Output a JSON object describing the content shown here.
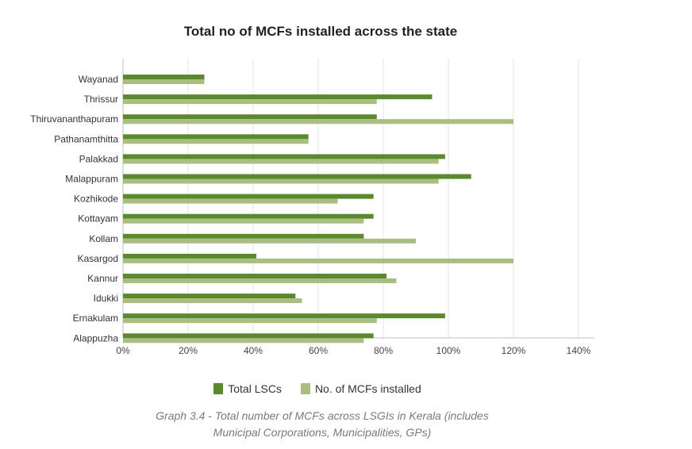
{
  "chart_data": {
    "type": "bar",
    "orientation": "horizontal",
    "title": "Total no of MCFs installed across the state",
    "categories": [
      "Wayanad",
      "Thrissur",
      "Thiruvananthapuram",
      "Pathanamthitta",
      "Palakkad",
      "Malappuram",
      "Kozhikode",
      "Kottayam",
      "Kollam",
      "Kasargod",
      "Kannur",
      "Idukki",
      "Ernakulam",
      "Alappuzha"
    ],
    "series": [
      {
        "name": "Total LSCs",
        "color": "#5b8a2e",
        "values": [
          25,
          95,
          78,
          57,
          99,
          107,
          77,
          77,
          74,
          41,
          81,
          53,
          99,
          77
        ]
      },
      {
        "name": "No. of MCFs installed",
        "color": "#a9be80",
        "values": [
          25,
          78,
          120,
          57,
          97,
          97,
          66,
          74,
          90,
          120,
          84,
          55,
          78,
          74
        ]
      }
    ],
    "xlim": [
      0,
      140
    ],
    "xticks": [
      "0%",
      "20%",
      "40%",
      "60%",
      "80%",
      "100%",
      "120%",
      "140%"
    ],
    "grid": true,
    "legend_position": "bottom"
  },
  "caption": {
    "line1": "Graph 3.4 - Total number of MCFs across LSGIs in Kerala (includes",
    "line2": "Municipal Corporations, Municipalities, GPs)"
  }
}
